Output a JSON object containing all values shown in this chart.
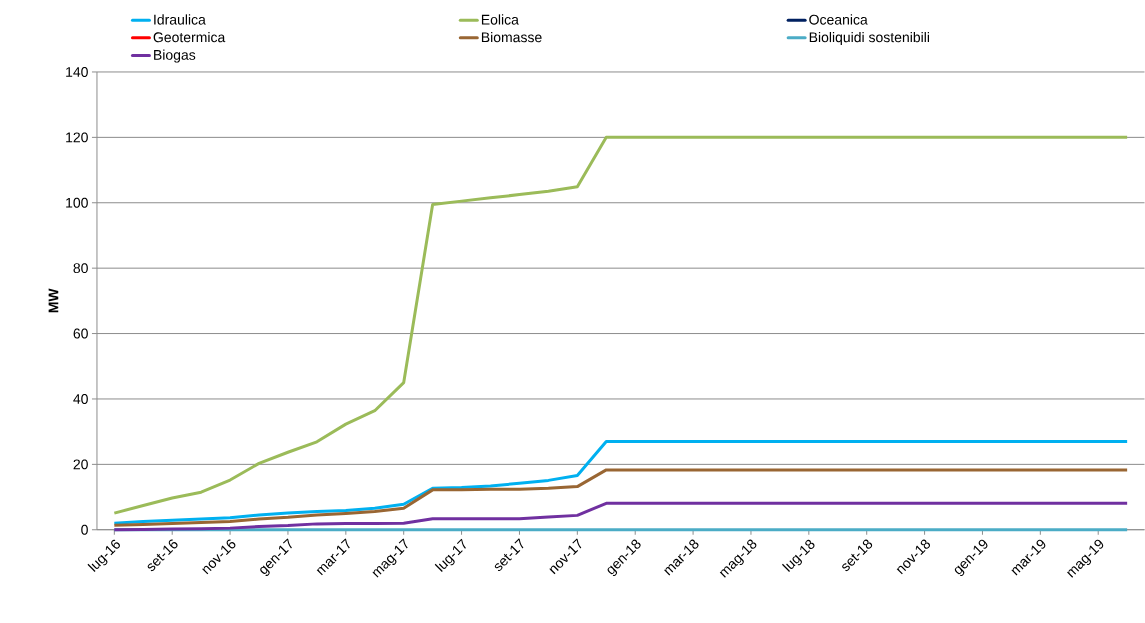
{
  "chart_data": {
    "type": "line",
    "ylabel": "MW",
    "categories": [
      "lug-16",
      null,
      "set-16",
      null,
      "nov-16",
      null,
      "gen-17",
      null,
      "mar-17",
      null,
      "mag-17",
      null,
      "lug-17",
      null,
      "set-17",
      null,
      "nov-17",
      null,
      "gen-18",
      null,
      "mar-18",
      null,
      "mag-18",
      null,
      "lug-18",
      null,
      "set-18",
      null,
      "nov-18",
      null,
      "gen-19",
      null,
      "mar-19",
      null,
      "mag-19",
      null
    ],
    "ylim": [
      0,
      140
    ],
    "yticks": [
      0,
      20,
      40,
      60,
      80,
      100,
      120,
      140
    ],
    "grid": "y",
    "legend": "top",
    "line_style": "solid",
    "series": [
      {
        "name": "Idraulica",
        "color": "#00b0f0",
        "values": [
          2.0,
          2.5,
          2.9,
          3.3,
          3.7,
          4.5,
          5.1,
          5.6,
          5.9,
          6.6,
          7.8,
          12.7,
          12.9,
          13.4,
          14.2,
          15.1,
          16.6,
          27,
          27,
          27,
          27,
          27,
          27,
          27,
          27,
          27,
          27,
          27,
          27,
          27,
          27,
          27,
          27,
          27,
          27,
          27
        ]
      },
      {
        "name": "Eolica",
        "color": "#9bbb59",
        "values": [
          5.1,
          7.4,
          9.7,
          11.5,
          15.2,
          20.3,
          23.7,
          26.9,
          32.3,
          36.4,
          45,
          99.5,
          100.5,
          101.5,
          102.5,
          103.5,
          104.9,
          120,
          120,
          120,
          120,
          120,
          120,
          120,
          120,
          120,
          120,
          120,
          120,
          120,
          120,
          120,
          120,
          120,
          120,
          120
        ]
      },
      {
        "name": "Oceanica",
        "color": "#002060",
        "values": [
          null,
          null,
          null,
          null,
          null,
          null,
          null,
          null,
          null,
          null,
          null,
          null,
          null,
          null,
          null,
          null,
          null,
          null,
          null,
          null,
          null,
          null,
          null,
          null,
          null,
          null,
          null,
          null,
          null,
          null,
          null,
          null,
          null,
          null,
          null,
          null
        ]
      },
      {
        "name": "Geotermica",
        "color": "#ff0000",
        "values": [
          null,
          null,
          null,
          null,
          null,
          null,
          null,
          null,
          null,
          null,
          null,
          null,
          null,
          null,
          null,
          null,
          null,
          null,
          null,
          null,
          null,
          null,
          null,
          null,
          null,
          null,
          null,
          null,
          null,
          null,
          null,
          null,
          null,
          null,
          null,
          null
        ]
      },
      {
        "name": "Biomasse",
        "color": "#996633",
        "values": [
          1.4,
          1.6,
          1.9,
          2.2,
          2.5,
          3.3,
          3.8,
          4.5,
          5.0,
          5.6,
          6.6,
          12.2,
          12.2,
          12.4,
          12.4,
          12.7,
          13.2,
          18.3,
          18.3,
          18.3,
          18.3,
          18.3,
          18.3,
          18.3,
          18.3,
          18.3,
          18.3,
          18.3,
          18.3,
          18.3,
          18.3,
          18.3,
          18.3,
          18.3,
          18.3,
          18.3
        ]
      },
      {
        "name": "Bioliquidi sostenibili",
        "color": "#4bacc6",
        "values": [
          0,
          0,
          0,
          0,
          0,
          0,
          0,
          0,
          0,
          0,
          0,
          0,
          0,
          0,
          0,
          0,
          0,
          0,
          0,
          0,
          0,
          0,
          0,
          0,
          0,
          0,
          0,
          0,
          0,
          0,
          0,
          0,
          0,
          0,
          0,
          0
        ]
      },
      {
        "name": "Biogas",
        "color": "#7030a0",
        "values": [
          0,
          0.1,
          0.2,
          0.3,
          0.5,
          1.0,
          1.3,
          1.8,
          1.9,
          1.9,
          2.0,
          3.4,
          3.4,
          3.4,
          3.4,
          3.9,
          4.4,
          8.1,
          8.1,
          8.1,
          8.1,
          8.1,
          8.1,
          8.1,
          8.1,
          8.1,
          8.1,
          8.1,
          8.1,
          8.1,
          8.1,
          8.1,
          8.1,
          8.1,
          8.1,
          8.1
        ]
      }
    ]
  }
}
